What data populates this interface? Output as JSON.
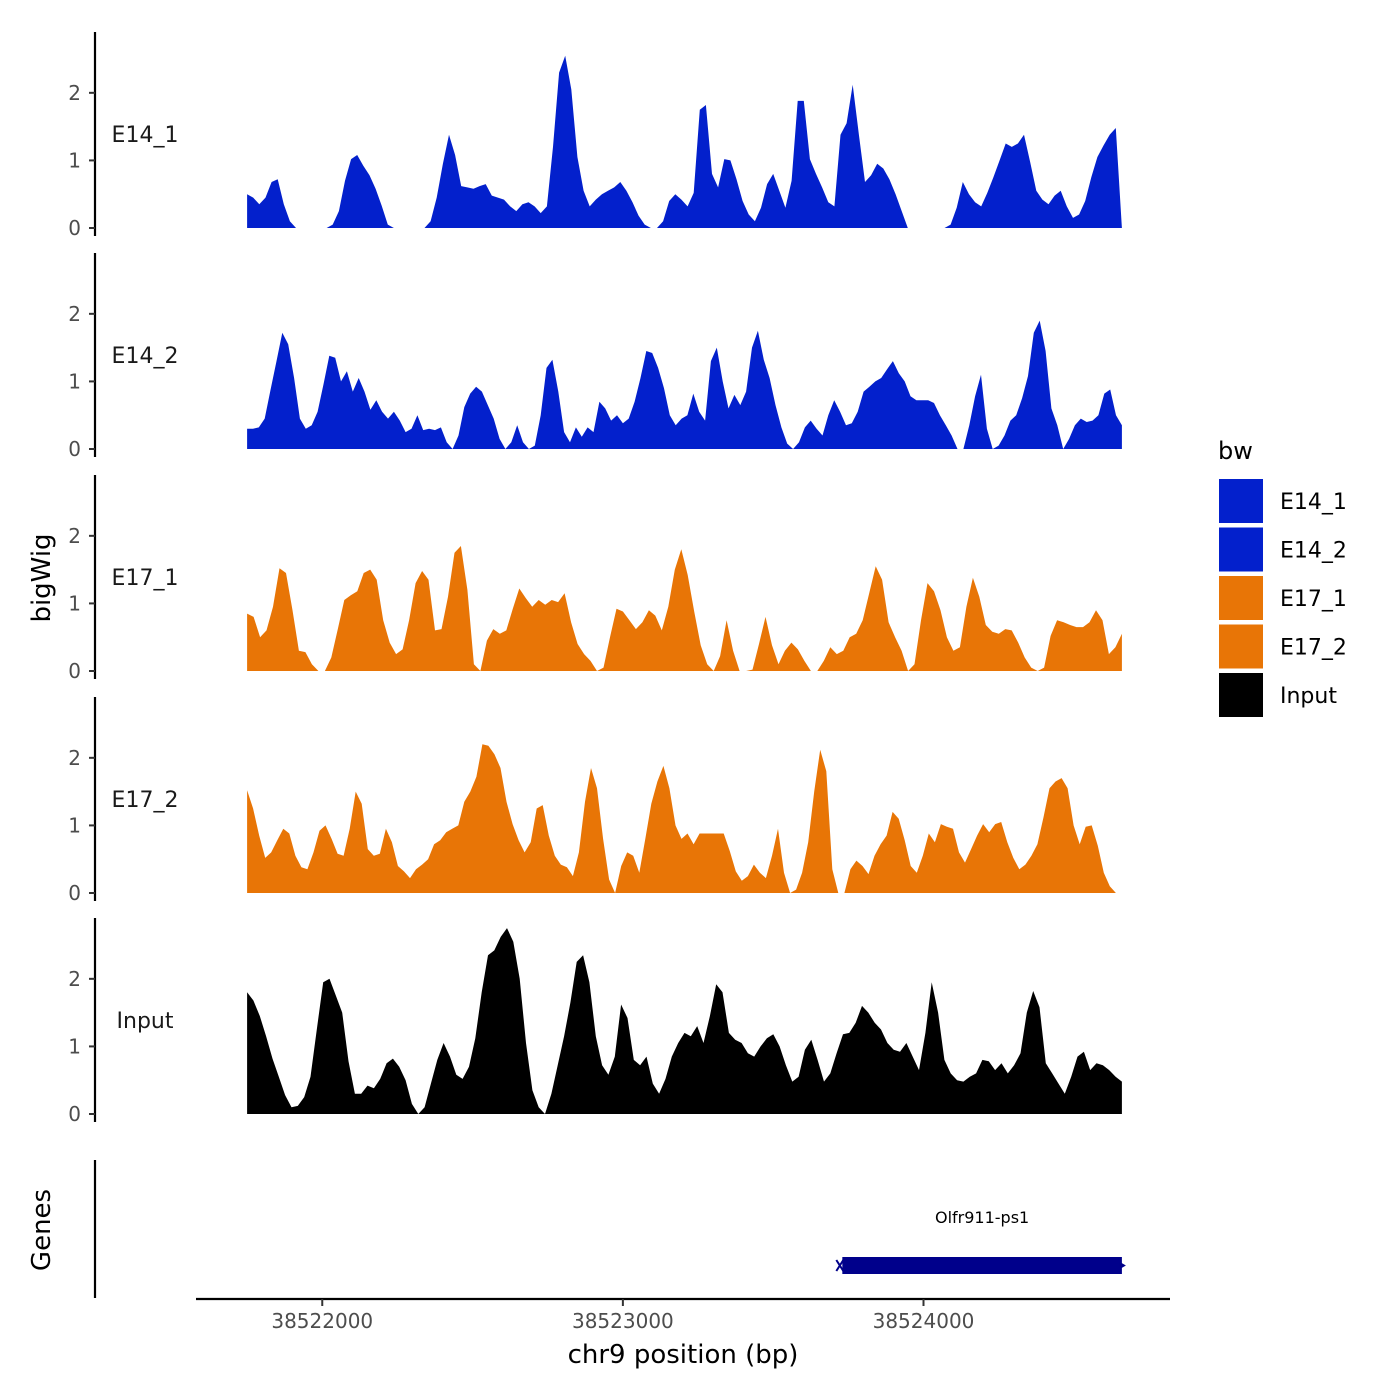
{
  "chart_data": {
    "type": "area",
    "ylabel": "bigWig",
    "xlabel": "chr9 position (bp)",
    "gene_panel_label": "Genes",
    "xlim": [
      38521580,
      38524820
    ],
    "x_domain": [
      38521750,
      38524660
    ],
    "ylim": [
      0,
      2.9
    ],
    "y_ticks": [
      0,
      1,
      2
    ],
    "x_ticks": [
      38522000,
      38523000,
      38524000
    ],
    "x_tick_labels": [
      "38522000",
      "38523000",
      "38524000"
    ],
    "legend": {
      "title": "bw",
      "placement": "right",
      "entries": [
        {
          "name": "E14_1",
          "color": "#0320cc"
        },
        {
          "name": "E14_2",
          "color": "#0320cc"
        },
        {
          "name": "E17_1",
          "color": "#e87506"
        },
        {
          "name": "E17_2",
          "color": "#e87506"
        },
        {
          "name": "Input",
          "color": "#000000"
        }
      ]
    },
    "tracks": [
      {
        "name": "E14_1",
        "color": "#0320cc",
        "values": [
          0.5,
          0.45,
          0.35,
          0.45,
          0.68,
          0.72,
          0.35,
          0.1,
          0.0,
          0.0,
          0.0,
          0.0,
          0.0,
          0.0,
          0.05,
          0.25,
          0.7,
          1.02,
          1.08,
          0.92,
          0.78,
          0.58,
          0.33,
          0.05,
          0.0,
          0.0,
          0.0,
          0.0,
          0.0,
          0.0,
          0.1,
          0.45,
          0.95,
          1.38,
          1.08,
          0.62,
          0.6,
          0.58,
          0.62,
          0.65,
          0.48,
          0.45,
          0.42,
          0.32,
          0.25,
          0.35,
          0.38,
          0.32,
          0.22,
          0.32,
          1.2,
          2.3,
          2.55,
          2.05,
          1.05,
          0.55,
          0.32,
          0.42,
          0.5,
          0.55,
          0.6,
          0.68,
          0.55,
          0.38,
          0.18,
          0.05,
          0.0,
          0.0,
          0.1,
          0.4,
          0.5,
          0.42,
          0.32,
          0.52,
          1.75,
          1.82,
          0.8,
          0.6,
          1.02,
          1.0,
          0.72,
          0.4,
          0.2,
          0.1,
          0.3,
          0.65,
          0.8,
          0.55,
          0.3,
          0.7,
          1.88,
          1.88,
          1.02,
          0.8,
          0.6,
          0.38,
          0.32,
          1.38,
          1.55,
          2.12,
          1.38,
          0.68,
          0.78,
          0.95,
          0.88,
          0.72,
          0.5,
          0.25,
          0.0,
          0.0,
          0.0,
          0.0,
          0.0,
          0.0,
          0.0,
          0.05,
          0.3,
          0.68,
          0.5,
          0.38,
          0.32,
          0.52,
          0.75,
          1.0,
          1.25,
          1.2,
          1.25,
          1.38,
          0.98,
          0.55,
          0.42,
          0.35,
          0.48,
          0.55,
          0.32,
          0.15,
          0.2,
          0.4,
          0.75,
          1.05,
          1.22,
          1.38,
          1.48,
          0.0
        ]
      },
      {
        "name": "E14_2",
        "color": "#0320cc",
        "values": [
          0.3,
          0.3,
          0.32,
          0.45,
          0.88,
          1.3,
          1.72,
          1.55,
          1.05,
          0.45,
          0.3,
          0.35,
          0.55,
          0.95,
          1.38,
          1.35,
          1.0,
          1.15,
          0.85,
          1.05,
          0.85,
          0.58,
          0.72,
          0.55,
          0.45,
          0.55,
          0.42,
          0.25,
          0.3,
          0.5,
          0.28,
          0.3,
          0.28,
          0.32,
          0.1,
          0.0,
          0.2,
          0.62,
          0.82,
          0.92,
          0.85,
          0.65,
          0.45,
          0.15,
          0.0,
          0.1,
          0.35,
          0.1,
          0.0,
          0.05,
          0.5,
          1.2,
          1.32,
          0.85,
          0.25,
          0.1,
          0.32,
          0.18,
          0.32,
          0.25,
          0.7,
          0.6,
          0.42,
          0.5,
          0.38,
          0.45,
          0.7,
          1.05,
          1.45,
          1.42,
          1.2,
          0.9,
          0.5,
          0.35,
          0.45,
          0.5,
          0.82,
          0.55,
          0.42,
          1.3,
          1.5,
          1.0,
          0.6,
          0.8,
          0.65,
          0.85,
          1.5,
          1.75,
          1.32,
          1.05,
          0.65,
          0.32,
          0.08,
          0.0,
          0.1,
          0.32,
          0.42,
          0.3,
          0.2,
          0.5,
          0.72,
          0.55,
          0.35,
          0.38,
          0.55,
          0.85,
          0.92,
          1.0,
          1.05,
          1.18,
          1.3,
          1.12,
          1.0,
          0.78,
          0.72,
          0.72,
          0.72,
          0.68,
          0.5,
          0.35,
          0.2,
          0.0,
          0.0,
          0.35,
          0.78,
          1.1,
          0.3,
          0.0,
          0.05,
          0.2,
          0.42,
          0.5,
          0.75,
          1.08,
          1.72,
          1.9,
          1.45,
          0.6,
          0.35,
          0.0,
          0.15,
          0.35,
          0.45,
          0.4,
          0.42,
          0.5,
          0.82,
          0.88,
          0.5,
          0.35
        ]
      },
      {
        "name": "E17_1",
        "color": "#e87506",
        "values": [
          0.85,
          0.8,
          0.5,
          0.6,
          0.95,
          1.52,
          1.45,
          0.9,
          0.3,
          0.28,
          0.1,
          0.0,
          0.0,
          0.2,
          0.62,
          1.05,
          1.12,
          1.18,
          1.45,
          1.5,
          1.35,
          0.75,
          0.42,
          0.25,
          0.32,
          0.75,
          1.3,
          1.48,
          1.35,
          0.6,
          0.62,
          1.1,
          1.75,
          1.85,
          1.2,
          0.1,
          0.0,
          0.45,
          0.62,
          0.55,
          0.6,
          0.92,
          1.22,
          1.08,
          0.95,
          1.05,
          0.98,
          1.05,
          1.02,
          1.15,
          0.72,
          0.4,
          0.25,
          0.15,
          0.0,
          0.05,
          0.5,
          0.92,
          0.88,
          0.75,
          0.62,
          0.72,
          0.9,
          0.82,
          0.6,
          0.95,
          1.5,
          1.8,
          1.42,
          0.88,
          0.38,
          0.1,
          0.0,
          0.22,
          0.75,
          0.3,
          0.0,
          0.0,
          0.02,
          0.4,
          0.8,
          0.38,
          0.1,
          0.3,
          0.42,
          0.32,
          0.15,
          0.0,
          0.0,
          0.15,
          0.35,
          0.25,
          0.3,
          0.5,
          0.55,
          0.75,
          1.15,
          1.55,
          1.35,
          0.72,
          0.5,
          0.3,
          0.0,
          0.1,
          0.75,
          1.3,
          1.18,
          0.9,
          0.5,
          0.3,
          0.35,
          0.95,
          1.38,
          1.1,
          0.68,
          0.58,
          0.55,
          0.62,
          0.6,
          0.42,
          0.2,
          0.05,
          0.0,
          0.05,
          0.52,
          0.75,
          0.72,
          0.68,
          0.65,
          0.65,
          0.72,
          0.9,
          0.75,
          0.25,
          0.35,
          0.55
        ]
      },
      {
        "name": "E17_2",
        "color": "#e87506",
        "values": [
          1.52,
          1.25,
          0.85,
          0.52,
          0.6,
          0.78,
          0.95,
          0.88,
          0.55,
          0.38,
          0.35,
          0.6,
          0.92,
          1.0,
          0.8,
          0.58,
          0.55,
          0.95,
          1.5,
          1.32,
          0.65,
          0.55,
          0.58,
          0.95,
          0.75,
          0.4,
          0.32,
          0.22,
          0.35,
          0.42,
          0.5,
          0.72,
          0.78,
          0.9,
          0.95,
          1.0,
          1.35,
          1.5,
          1.72,
          2.2,
          2.18,
          2.05,
          1.85,
          1.35,
          1.02,
          0.78,
          0.6,
          0.75,
          1.25,
          1.3,
          0.85,
          0.55,
          0.42,
          0.38,
          0.25,
          0.6,
          1.35,
          1.85,
          1.55,
          0.8,
          0.2,
          0.0,
          0.4,
          0.6,
          0.55,
          0.3,
          0.8,
          1.32,
          1.65,
          1.88,
          1.55,
          1.0,
          0.8,
          0.88,
          0.72,
          0.88,
          0.88,
          0.88,
          0.88,
          0.88,
          0.62,
          0.32,
          0.18,
          0.25,
          0.42,
          0.3,
          0.22,
          0.55,
          0.95,
          0.3,
          0.0,
          0.05,
          0.3,
          0.75,
          1.5,
          2.12,
          1.8,
          0.35,
          0.0,
          0.0,
          0.35,
          0.48,
          0.4,
          0.28,
          0.55,
          0.72,
          0.85,
          1.2,
          1.1,
          0.78,
          0.4,
          0.3,
          0.55,
          0.88,
          0.75,
          1.02,
          0.98,
          0.95,
          0.6,
          0.45,
          0.65,
          0.85,
          1.02,
          0.9,
          1.02,
          1.05,
          0.75,
          0.52,
          0.35,
          0.42,
          0.55,
          0.72,
          1.12,
          1.55,
          1.65,
          1.7,
          1.55,
          1.0,
          0.72,
          0.98,
          1.0,
          0.7,
          0.3,
          0.1,
          0.0,
          0.0
        ]
      },
      {
        "name": "Input",
        "color": "#000000",
        "values": [
          1.8,
          1.68,
          1.45,
          1.15,
          0.82,
          0.55,
          0.28,
          0.1,
          0.12,
          0.25,
          0.55,
          1.25,
          1.95,
          2.0,
          1.75,
          1.5,
          0.78,
          0.3,
          0.3,
          0.42,
          0.38,
          0.52,
          0.75,
          0.82,
          0.7,
          0.5,
          0.15,
          0.0,
          0.1,
          0.45,
          0.8,
          1.05,
          0.85,
          0.58,
          0.52,
          0.7,
          1.12,
          1.8,
          2.35,
          2.42,
          2.62,
          2.75,
          2.55,
          2.0,
          1.05,
          0.35,
          0.1,
          0.0,
          0.3,
          0.72,
          1.15,
          1.65,
          2.25,
          2.35,
          1.95,
          1.15,
          0.72,
          0.58,
          0.85,
          1.62,
          1.42,
          0.8,
          0.72,
          0.85,
          0.45,
          0.3,
          0.52,
          0.85,
          1.05,
          1.2,
          1.15,
          1.3,
          1.05,
          1.45,
          1.92,
          1.8,
          1.2,
          1.1,
          1.05,
          0.9,
          0.85,
          1.0,
          1.12,
          1.18,
          1.0,
          0.72,
          0.48,
          0.55,
          0.95,
          1.1,
          0.8,
          0.48,
          0.6,
          0.9,
          1.18,
          1.2,
          1.35,
          1.6,
          1.5,
          1.35,
          1.25,
          1.05,
          0.95,
          0.92,
          1.05,
          0.85,
          0.65,
          1.2,
          1.95,
          1.5,
          0.8,
          0.6,
          0.5,
          0.48,
          0.55,
          0.6,
          0.8,
          0.78,
          0.65,
          0.75,
          0.6,
          0.72,
          0.9,
          1.5,
          1.82,
          1.58,
          0.75,
          0.6,
          0.45,
          0.3,
          0.55,
          0.85,
          0.92,
          0.65,
          0.75,
          0.72,
          0.65,
          0.55,
          0.48
        ]
      }
    ],
    "genes": [
      {
        "name": "Olfr911-ps1",
        "start": 38523730,
        "end": 38524660,
        "strand": "-",
        "color": "#00008b"
      }
    ]
  }
}
